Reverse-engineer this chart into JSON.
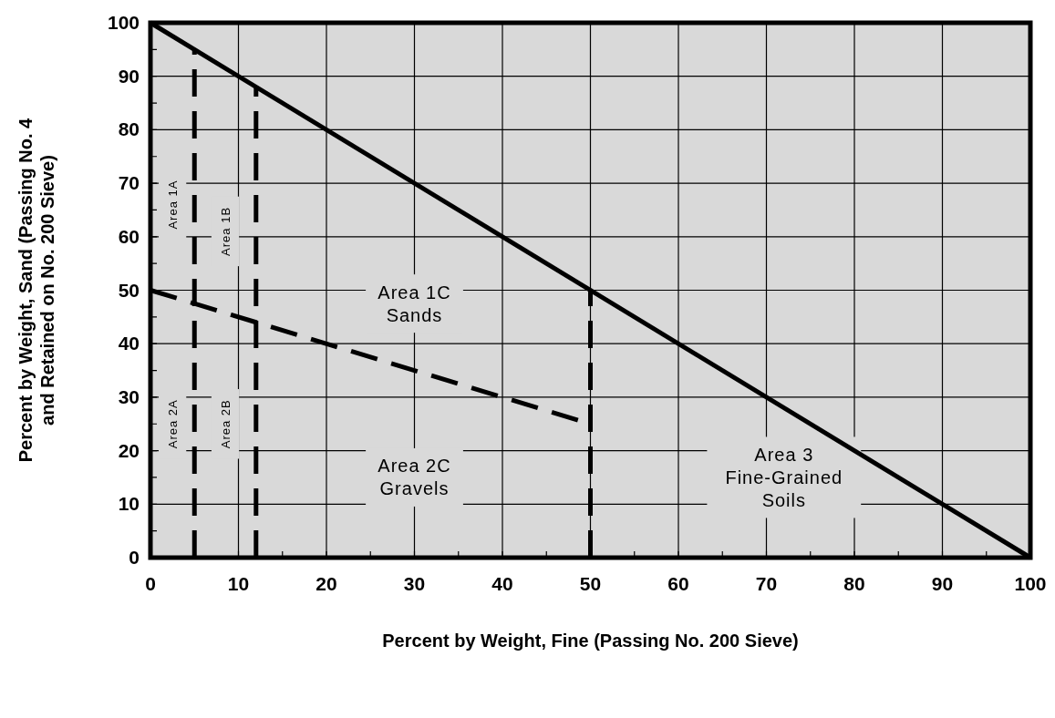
{
  "chart_data": {
    "type": "line",
    "xlabel": "Percent by Weight, Fine (Passing No. 200 Sieve)",
    "ylabel": "Percent by Weight, Sand (Passing No. 4\nand Retained on No. 200 Sieve)",
    "xlim": [
      0,
      100
    ],
    "ylim": [
      0,
      100
    ],
    "xticks": [
      0,
      {
        "value": 5,
        "label": null
      },
      10,
      {
        "value": 15,
        "label": null
      },
      20,
      {
        "value": 25,
        "label": null
      },
      30,
      {
        "value": 35,
        "label": null
      },
      40,
      {
        "value": 45,
        "label": null
      },
      50,
      {
        "value": 55,
        "label": null
      },
      60,
      {
        "value": 65,
        "label": null
      },
      70,
      {
        "value": 75,
        "label": null
      },
      80,
      {
        "value": 85,
        "label": null
      },
      90,
      {
        "value": 95,
        "label": null
      },
      100
    ],
    "yticks": [
      0,
      {
        "value": 5,
        "label": null
      },
      10,
      {
        "value": 15,
        "label": null
      },
      20,
      {
        "value": 25,
        "label": null
      },
      30,
      {
        "value": 35,
        "label": null
      },
      40,
      {
        "value": 45,
        "label": null
      },
      50,
      {
        "value": 55,
        "label": null
      },
      60,
      {
        "value": 65,
        "label": null
      },
      70,
      {
        "value": 75,
        "label": null
      },
      80,
      {
        "value": 85,
        "label": null
      },
      90,
      {
        "value": 95,
        "label": null
      },
      100
    ],
    "grid": true,
    "marker": "none",
    "series": [
      {
        "color": "#000000",
        "x": [
          0,
          100
        ],
        "values": [
          100,
          0
        ],
        "line_style": "solid"
      },
      {
        "color": "#000000",
        "x": [
          5,
          5
        ],
        "values": [
          0,
          95
        ],
        "line_style": "dashed"
      },
      {
        "color": "#000000",
        "x": [
          12,
          12
        ],
        "values": [
          0,
          88
        ],
        "line_style": "dashed"
      },
      {
        "color": "#000000",
        "x": [
          50,
          50
        ],
        "values": [
          0,
          50
        ],
        "line_style": "dashed"
      },
      {
        "color": "#000000",
        "x": [
          0,
          50
        ],
        "values": [
          50,
          25
        ],
        "line_style": "dashed"
      }
    ],
    "annotations": [
      "Area 1A",
      "Area 1B",
      "Area 2A",
      "Area 2B",
      "Area 1C\nSands",
      "Area 2C\nGravels",
      "Area 3\nFine-Grained\nSoils"
    ]
  }
}
